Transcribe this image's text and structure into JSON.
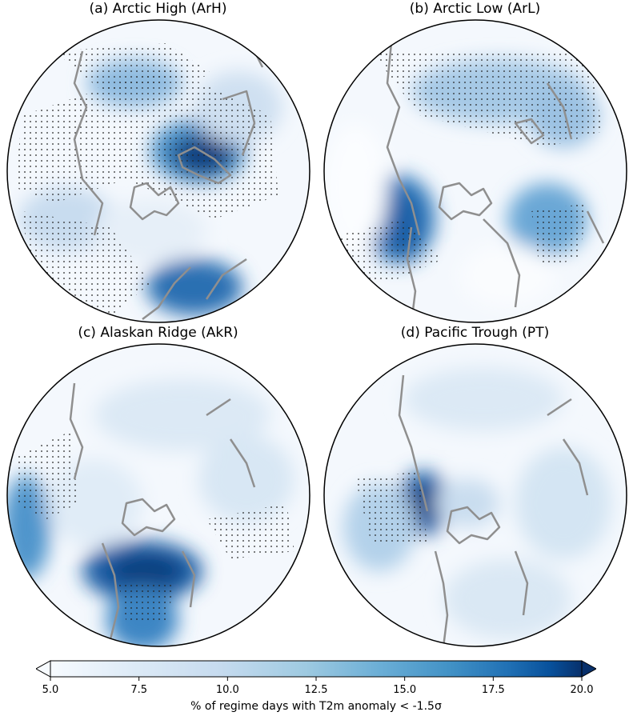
{
  "figure": {
    "panels": [
      {
        "title": "(a) Arctic High (ArH)"
      },
      {
        "title": "(b) Arctic Low (ArL)"
      },
      {
        "title": "(c) Alaskan Ridge (AkR)"
      },
      {
        "title": "(d) Pacific Trough (PT)"
      }
    ],
    "colorbar": {
      "label": "% of regime days with T2m anomaly < -1.5σ",
      "ticks": [
        "5.0",
        "7.5",
        "10.0",
        "12.5",
        "15.0",
        "17.5",
        "20.0"
      ],
      "min": 5.0,
      "max": 20.0
    },
    "colors": {
      "low": "#f7fbff",
      "high": "#08306b",
      "coast": "#8f8f8f"
    }
  }
}
